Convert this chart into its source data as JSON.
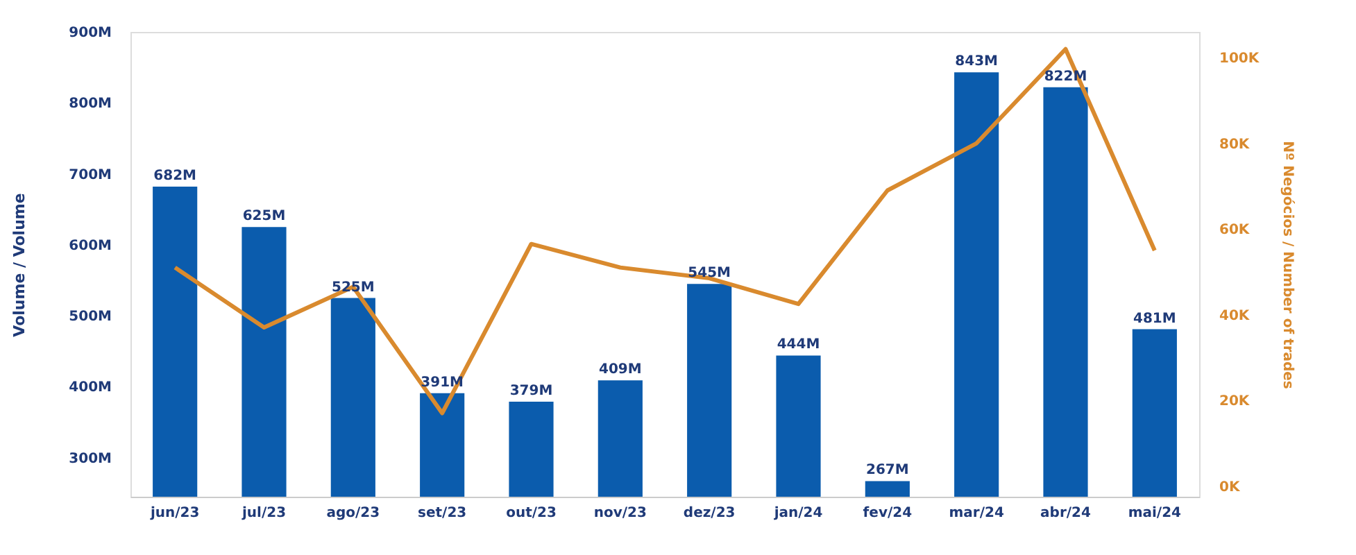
{
  "chart_data": {
    "type": "bar",
    "ylabel": "Volume / Volume",
    "y2label": "Nº Negócios / Number of trades",
    "categories": [
      "jun/23",
      "jul/23",
      "ago/23",
      "set/23",
      "out/23",
      "nov/23",
      "dez/23",
      "jan/24",
      "fev/24",
      "mar/24",
      "abr/24",
      "mai/24"
    ],
    "series": [
      {
        "color": "#0b5cad",
        "values": [
          682,
          625,
          525,
          391,
          379,
          409,
          545,
          444,
          267,
          843,
          822,
          481
        ],
        "value_labels": [
          "682M",
          "625M",
          "525M",
          "391M",
          "379M",
          "409M",
          "545M",
          "444M",
          "267M",
          "843M",
          "822M",
          "481M"
        ]
      },
      {
        "type": "line",
        "axis": "y2",
        "color": "#d98a2e",
        "values": [
          51,
          37,
          46.5,
          17,
          56.5,
          51,
          48.5,
          42.5,
          69,
          80,
          102,
          55
        ]
      }
    ],
    "ylim": [
      245,
      900
    ],
    "yticks": [
      {
        "value": 300,
        "label": "300M"
      },
      {
        "value": 400,
        "label": "400M"
      },
      {
        "value": 500,
        "label": "500M"
      },
      {
        "value": 600,
        "label": "600M"
      },
      {
        "value": 700,
        "label": "700M"
      },
      {
        "value": 800,
        "label": "800M"
      },
      {
        "value": 900,
        "label": "900M"
      }
    ],
    "y2lim": [
      -2.5,
      106
    ],
    "y2ticks": [
      {
        "value": 0,
        "label": "0K"
      },
      {
        "value": 20,
        "label": "20K"
      },
      {
        "value": 40,
        "label": "40K"
      },
      {
        "value": 60,
        "label": "60K"
      },
      {
        "value": 80,
        "label": "80K"
      },
      {
        "value": 100,
        "label": "100K"
      }
    ],
    "marker": "none",
    "line_style": "solid"
  }
}
